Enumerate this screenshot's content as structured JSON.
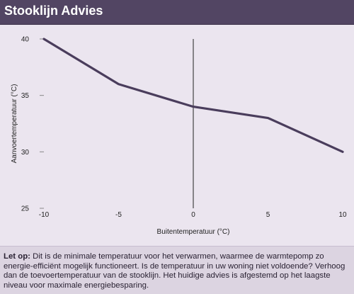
{
  "header": {
    "title": "Stooklijn Advies"
  },
  "chart_data": {
    "type": "line",
    "xlabel": "Buitentemperatuur (°C)",
    "ylabel": "Aanvoertemperatuur (°C)",
    "xlim": [
      -10,
      10
    ],
    "ylim": [
      25,
      40
    ],
    "xticks": [
      -10,
      -5,
      0,
      5,
      10
    ],
    "yticks": [
      25,
      30,
      35,
      40
    ],
    "x": [
      -10,
      -5,
      0,
      5,
      10
    ],
    "y": [
      40,
      36,
      34,
      33,
      30
    ],
    "grid": false,
    "line_color": "#4a3d5c",
    "zero_line_color": "#222222"
  },
  "note": {
    "label": "Let op:",
    "text": " Dit is de minimale temperatuur voor het verwarmen, waarmee de warmtepomp zo energie-efficiënt mogelijk functioneert. Is de temperatuur in uw woning niet voldoende? Verhoog dan de toevoertemperatuur van de stooklijn. Het huidige advies is afgestemd op het laagste niveau voor maximale energiebesparing."
  },
  "colors": {
    "header_bg": "#524563",
    "chart_bg": "#ebe5ef",
    "panel_bg": "#dcd4e1"
  }
}
